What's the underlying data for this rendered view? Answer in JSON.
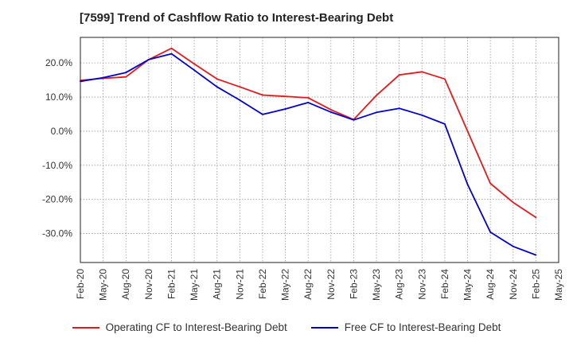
{
  "chart_data": {
    "type": "line",
    "title": "[7599]  Trend of Cashflow Ratio to Interest-Bearing Debt",
    "xlabel": "",
    "ylabel": "",
    "x_tick_labels": [
      "Feb-20",
      "May-20",
      "Aug-20",
      "Nov-20",
      "Feb-21",
      "May-21",
      "Aug-21",
      "Nov-21",
      "Feb-22",
      "May-22",
      "Aug-22",
      "Nov-22",
      "Feb-23",
      "May-23",
      "Aug-23",
      "Nov-23",
      "Feb-24",
      "May-24",
      "Aug-24",
      "Nov-24",
      "Feb-25",
      "May-25"
    ],
    "y_ticks": [
      20,
      10,
      0,
      -10,
      -20,
      -30
    ],
    "y_tick_labels": [
      "20.0%",
      "10.0%",
      "0.0%",
      "-10.0%",
      "-20.0%",
      "-30.0%"
    ],
    "ylim": [
      -38.5,
      27.5
    ],
    "grid": true,
    "legend_position": "bottom",
    "series": [
      {
        "name": "Operating CF to Interest-Bearing Debt",
        "color": "#e41a1c",
        "x": [
          "Feb-20",
          "May-20",
          "Aug-20",
          "Nov-20",
          "Feb-21",
          "May-21",
          "Aug-21",
          "Nov-21",
          "Feb-22",
          "May-22",
          "Aug-22",
          "Nov-22",
          "Feb-23",
          "May-23",
          "Aug-23",
          "Nov-23",
          "Feb-24",
          "May-24",
          "Aug-24",
          "Nov-24",
          "Feb-25"
        ],
        "values": [
          14.9,
          15.5,
          15.9,
          21.0,
          24.3,
          19.7,
          15.3,
          13.0,
          10.6,
          10.2,
          9.8,
          6.3,
          3.4,
          10.5,
          16.5,
          17.4,
          15.3,
          0.0,
          -15.3,
          -20.9,
          -25.3
        ]
      },
      {
        "name": "Free CF to Interest-Bearing Debt",
        "color": "#0000cc",
        "x": [
          "Feb-20",
          "May-20",
          "Aug-20",
          "Nov-20",
          "Feb-21",
          "May-21",
          "Aug-21",
          "Nov-21",
          "Feb-22",
          "May-22",
          "Aug-22",
          "Nov-22",
          "Feb-23",
          "May-23",
          "Aug-23",
          "Nov-23",
          "Feb-24",
          "May-24",
          "Aug-24",
          "Nov-24",
          "Feb-25"
        ],
        "values": [
          14.6,
          15.7,
          17.2,
          21.0,
          22.7,
          17.9,
          13.0,
          9.1,
          4.9,
          6.5,
          8.4,
          5.6,
          3.3,
          5.5,
          6.7,
          4.7,
          2.1,
          -15.6,
          -29.6,
          -33.8,
          -36.3
        ]
      }
    ]
  }
}
